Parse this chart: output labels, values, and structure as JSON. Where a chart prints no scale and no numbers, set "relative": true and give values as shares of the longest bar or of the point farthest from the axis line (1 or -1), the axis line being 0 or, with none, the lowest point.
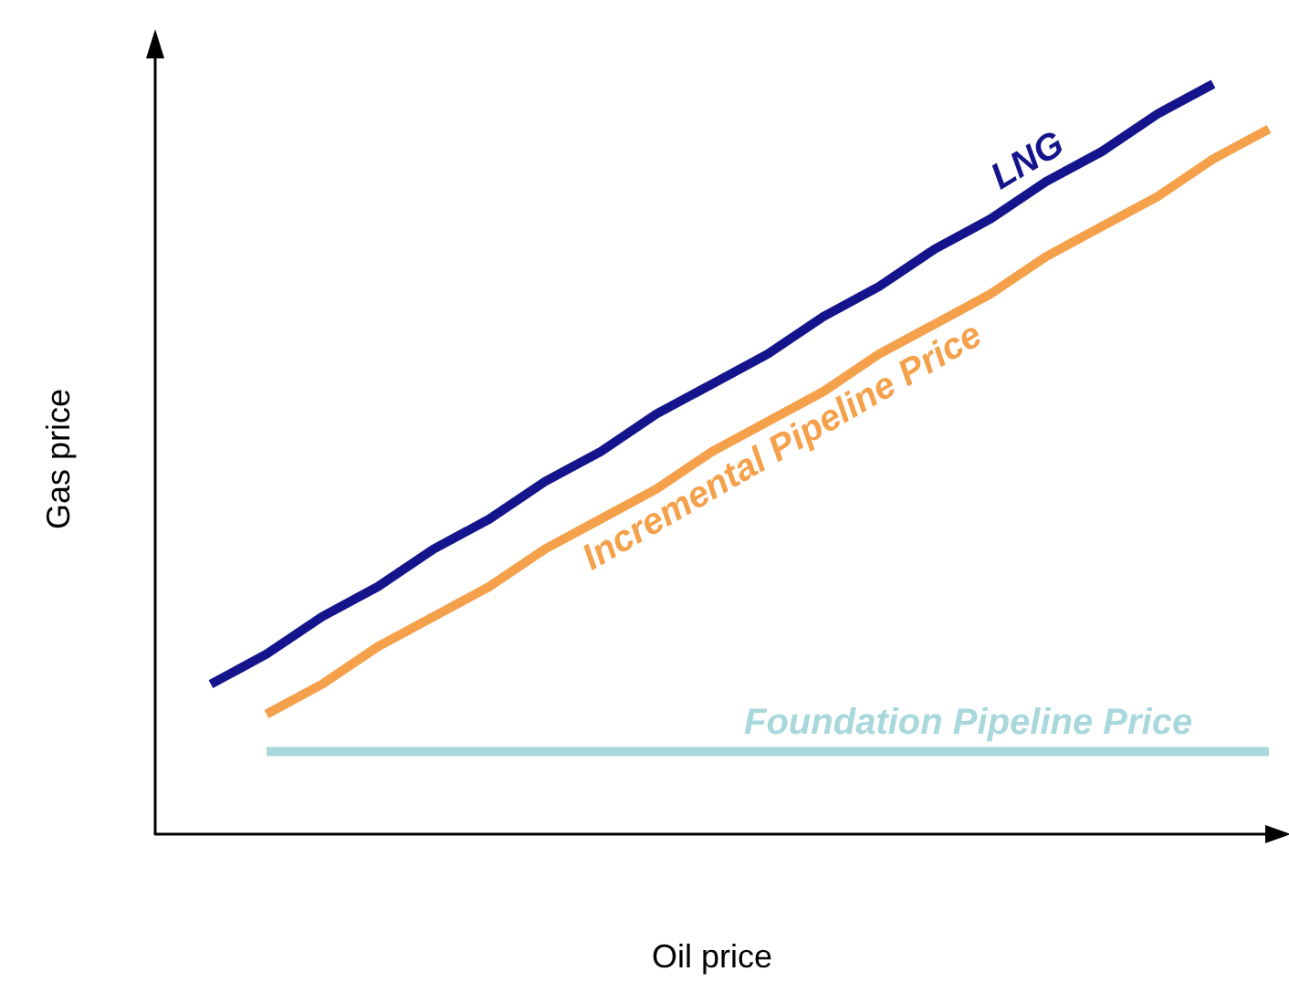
{
  "chart_data": {
    "type": "line",
    "relative": true,
    "xlabel": "Oil price",
    "ylabel": "Gas price",
    "legend": false,
    "grid": false,
    "marker": "none",
    "line_style": "solid",
    "categories": [
      null,
      null,
      null,
      null,
      null,
      null,
      null,
      null,
      null,
      null,
      null,
      null,
      null,
      null,
      null,
      null,
      null,
      null,
      null,
      null,
      null
    ],
    "series": [
      {
        "name": "LNG",
        "color": "#14148c",
        "values": [
          null,
          0.2,
          0.24,
          0.29,
          0.33,
          0.38,
          0.42,
          0.47,
          0.51,
          0.56,
          0.6,
          0.64,
          0.69,
          0.73,
          0.78,
          0.82,
          0.87,
          0.91,
          0.96,
          1.0,
          null
        ]
      },
      {
        "name": "Incremental Pipeline Price",
        "color": "#f5a04a",
        "values": [
          null,
          null,
          0.16,
          0.2,
          0.25,
          0.29,
          0.33,
          0.38,
          0.42,
          0.46,
          0.51,
          0.55,
          0.59,
          0.64,
          0.68,
          0.72,
          0.77,
          0.81,
          0.85,
          0.9,
          0.94
        ]
      },
      {
        "name": "Foundation Pipeline Price",
        "color": "#a8d8dc",
        "values": [
          null,
          null,
          0.11,
          0.11,
          0.11,
          0.11,
          0.11,
          0.11,
          0.11,
          0.11,
          0.11,
          0.11,
          0.11,
          0.11,
          0.11,
          0.11,
          0.11,
          0.11,
          0.11,
          0.11,
          0.11
        ]
      }
    ]
  }
}
